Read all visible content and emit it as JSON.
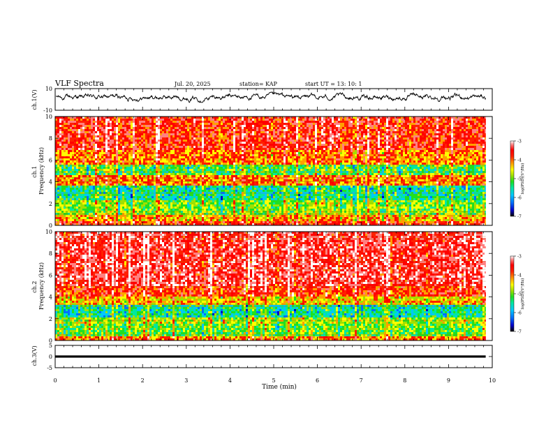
{
  "header": {
    "title": "VLF Spectra",
    "date": "Jul. 20, 2025",
    "station": "station= KAP",
    "start": "start  UT  =   13: 10: 1"
  },
  "chart_data": {
    "type": "heatmap",
    "x_axis": {
      "label": "Time (min)",
      "range": [
        0,
        10
      ],
      "ticks": [
        "0",
        "1",
        "2",
        "3",
        "4",
        "5",
        "6",
        "7",
        "8",
        "9",
        "10"
      ],
      "data_end": 9.85
    },
    "panels": [
      {
        "id": "ch1_waveform",
        "type": "line",
        "ylabel": "ch.1(V)",
        "ylim": [
          -10,
          10
        ],
        "yticks": [
          "10",
          "-10"
        ],
        "mean": 2,
        "amplitude": 3
      },
      {
        "id": "ch1_spectrogram",
        "type": "heatmap",
        "ylabel": "ch.1 Frequency (kHz)",
        "ylim": [
          0,
          10
        ],
        "yticks": [
          "0",
          "2",
          "4",
          "6",
          "8",
          "10"
        ],
        "bands_khz": [
          {
            "from": 0,
            "to": 0.4,
            "level": -4.0
          },
          {
            "from": 0.4,
            "to": 1.0,
            "level": -4.5
          },
          {
            "from": 1.0,
            "to": 2.4,
            "level": -5.1
          },
          {
            "from": 2.4,
            "to": 3.6,
            "level": -5.6
          },
          {
            "from": 3.6,
            "to": 4.6,
            "level": -4.3
          },
          {
            "from": 4.6,
            "to": 5.5,
            "level": -5.3
          },
          {
            "from": 5.5,
            "to": 7.0,
            "level": -4.3
          },
          {
            "from": 7.0,
            "to": 10.0,
            "level": -3.9
          }
        ]
      },
      {
        "id": "ch2_spectrogram",
        "type": "heatmap",
        "ylabel": "ch.2 Frequency (kHz)",
        "ylim": [
          0,
          10
        ],
        "yticks": [
          "0",
          "2",
          "4",
          "6",
          "8",
          "10"
        ],
        "bands_khz": [
          {
            "from": 0,
            "to": 0.4,
            "level": -4.3
          },
          {
            "from": 0.4,
            "to": 1.5,
            "level": -5.2
          },
          {
            "from": 1.5,
            "to": 2.2,
            "level": -5.0
          },
          {
            "from": 2.2,
            "to": 3.2,
            "level": -5.6
          },
          {
            "from": 3.2,
            "to": 4.0,
            "level": -4.6
          },
          {
            "from": 4.0,
            "to": 5.0,
            "level": -4.0
          },
          {
            "from": 5.0,
            "to": 10.0,
            "level": -3.7
          }
        ]
      },
      {
        "id": "ch3_waveform",
        "type": "line",
        "ylabel": "ch.3(V)",
        "ylim": [
          -5,
          5
        ],
        "yticks": [
          "5",
          "0",
          "-5"
        ],
        "level": 0,
        "band_halfwidth": 0.5
      }
    ],
    "colorbar": {
      "label": "log(PSD)(V²/Hz)",
      "range": [
        -7,
        -3
      ],
      "ticks": [
        "-3",
        "-4",
        "-5",
        "-6",
        "-7"
      ],
      "colors": [
        "#000000",
        "#0000cc",
        "#0070ff",
        "#00c8ff",
        "#00e8a0",
        "#20e020",
        "#a0e000",
        "#ffff00",
        "#ffa000",
        "#ff2000",
        "#ff0000",
        "#ff8080",
        "#ffffff"
      ]
    }
  }
}
